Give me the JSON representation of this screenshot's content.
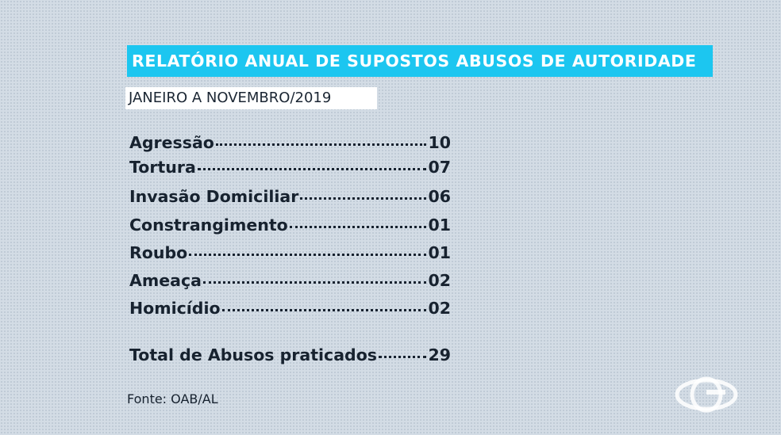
{
  "header": {
    "title": "RELATÓRIO ANUAL DE SUPOSTOS ABUSOS DE AUTORIDADE",
    "subtitle": "JANEIRO A NOVEMBRO/2019"
  },
  "items": [
    {
      "label": "Agressão",
      "value": "10"
    },
    {
      "label": "Tortura",
      "value": "07"
    },
    {
      "label": "Invasão Domiciliar",
      "value": "06"
    },
    {
      "label": "Constrangimento",
      "value": "01"
    },
    {
      "label": "Roubo",
      "value": "01"
    },
    {
      "label": "Ameaça",
      "value": "02"
    },
    {
      "label": "Homicídio",
      "value": "02"
    }
  ],
  "total": {
    "label": "Total de Abusos praticados",
    "value": "29"
  },
  "source": "Fonte: OAB/AL"
}
